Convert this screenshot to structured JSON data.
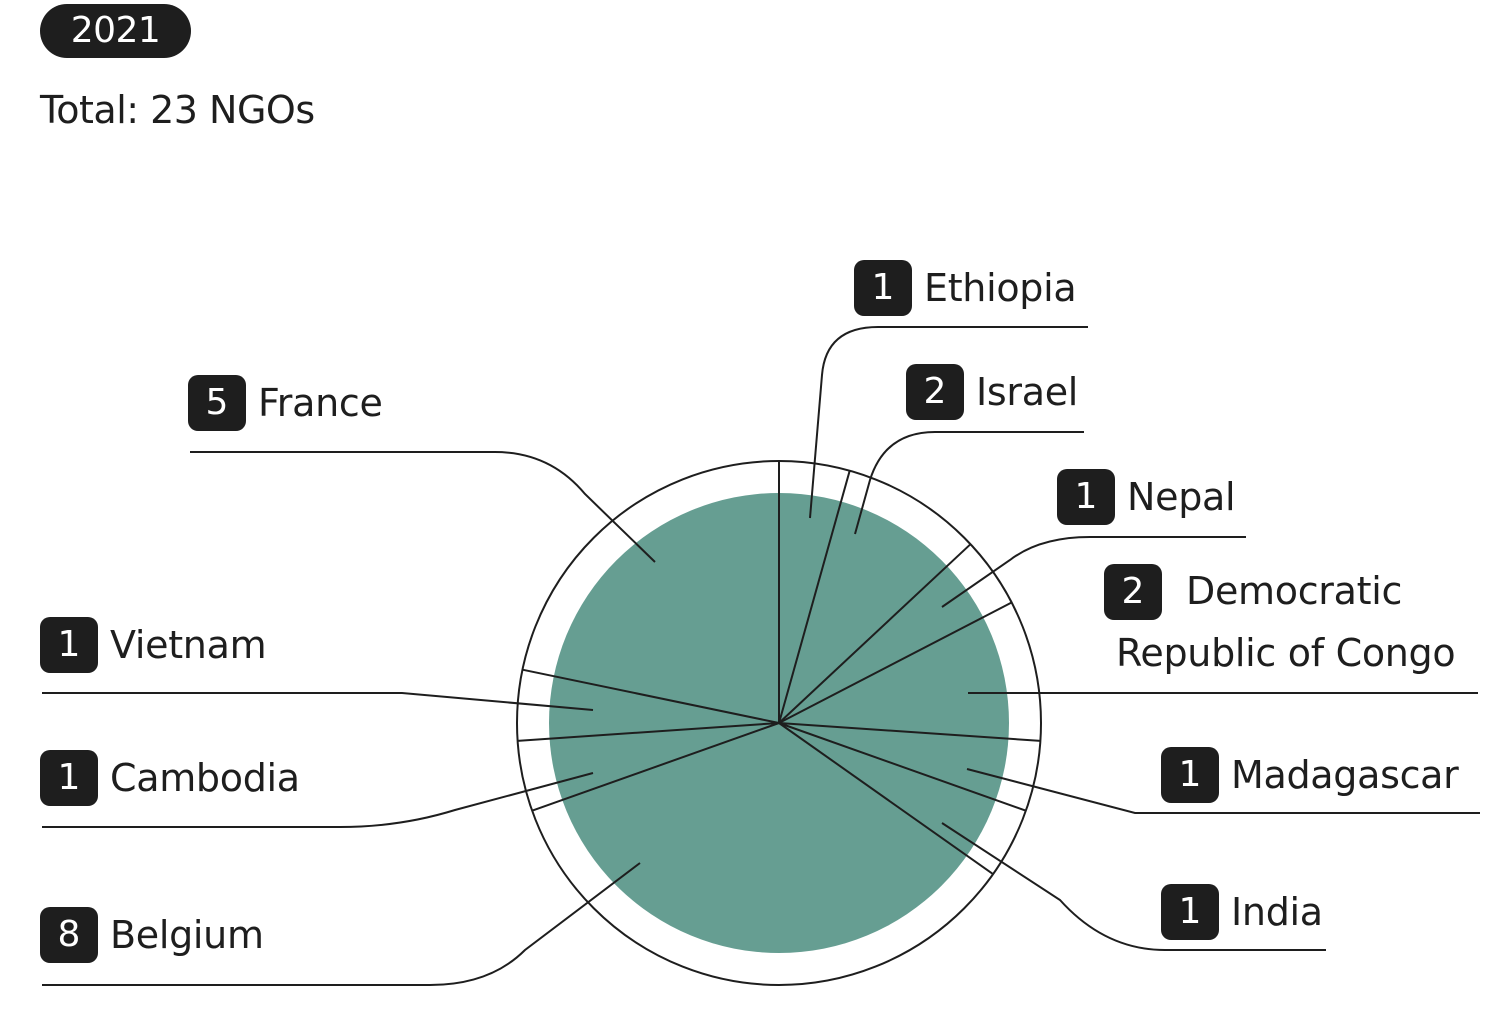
{
  "header": {
    "year": "2021",
    "total": "Total: 23 NGOs"
  },
  "colors": {
    "fill": "#669e92",
    "ink": "#1e1e1e",
    "background": "#ffffff"
  },
  "chart_data": {
    "type": "pie",
    "title": "",
    "total": 23,
    "slices": [
      {
        "label": "Ethiopia",
        "value": 1
      },
      {
        "label": "Israel",
        "value": 2
      },
      {
        "label": "Nepal",
        "value": 1
      },
      {
        "label": "Democratic Republic of Congo",
        "value": 2
      },
      {
        "label": "Madagascar",
        "value": 1
      },
      {
        "label": "India",
        "value": 1
      },
      {
        "label": "Belgium",
        "value": 8
      },
      {
        "label": "Cambodia",
        "value": 1
      },
      {
        "label": "Vietnam",
        "value": 1
      },
      {
        "label": "France",
        "value": 5
      }
    ]
  }
}
